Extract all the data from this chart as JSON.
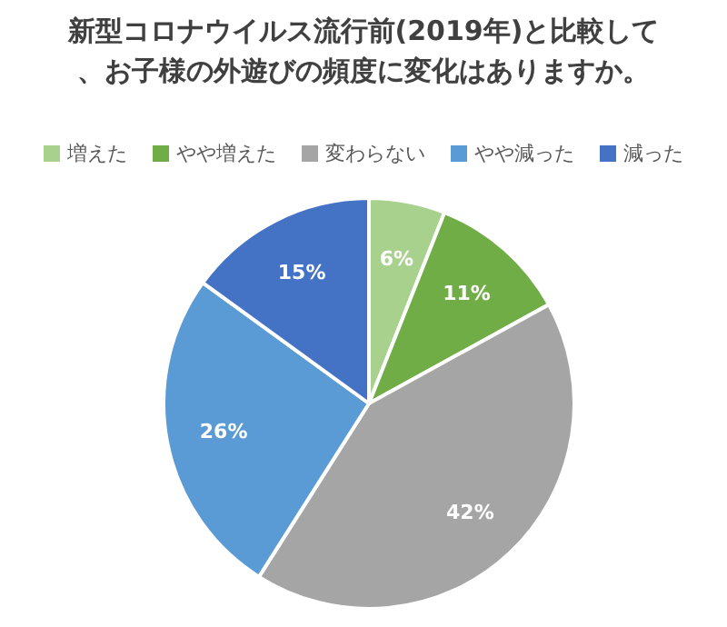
{
  "chart_data": {
    "type": "pie",
    "title": "新型コロナウイルス流行前(2019年)と比較して、お子様の外遊びの頻度に変化はありますか。",
    "categories": [
      "増えた",
      "やや増えた",
      "変わらない",
      "やや減った",
      "減った"
    ],
    "values": [
      6,
      11,
      42,
      26,
      15
    ],
    "value_labels": [
      "6%",
      "11%",
      "42%",
      "26%",
      "15%"
    ],
    "colors": [
      "#a9d18e",
      "#70ad47",
      "#a5a5a5",
      "#5b9bd5",
      "#4472c4"
    ],
    "legend": "top"
  }
}
